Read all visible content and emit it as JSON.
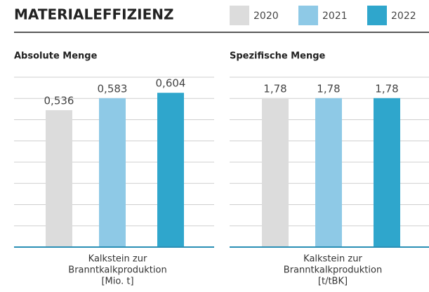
{
  "title": "MATERIALEFFIZIENZ",
  "legend": [
    {
      "name": "2020",
      "color": "#dcdcdc"
    },
    {
      "name": "2021",
      "color": "#8ec9e6"
    },
    {
      "name": "2022",
      "color": "#2fa6cc"
    }
  ],
  "chart_data": [
    {
      "type": "bar",
      "title": "Absolute Menge",
      "values": [
        0.536,
        0.583,
        0.604
      ],
      "value_labels": [
        "0,536",
        "0,583",
        "0,604"
      ],
      "xlabel": [
        "Kalkstein zur",
        "Branntkalkproduktion",
        "[Mio. t]"
      ],
      "ylim": [
        0,
        0.665
      ],
      "grid": true
    },
    {
      "type": "bar",
      "title": "Spezifische Menge",
      "values": [
        1.78,
        1.78,
        1.78
      ],
      "value_labels": [
        "1,78",
        "1,78",
        "1,78"
      ],
      "xlabel": [
        "Kalkstein zur",
        "Branntkalkproduktion",
        "[t/tBK]"
      ],
      "ylim": [
        0,
        2.03
      ],
      "grid": true
    }
  ]
}
